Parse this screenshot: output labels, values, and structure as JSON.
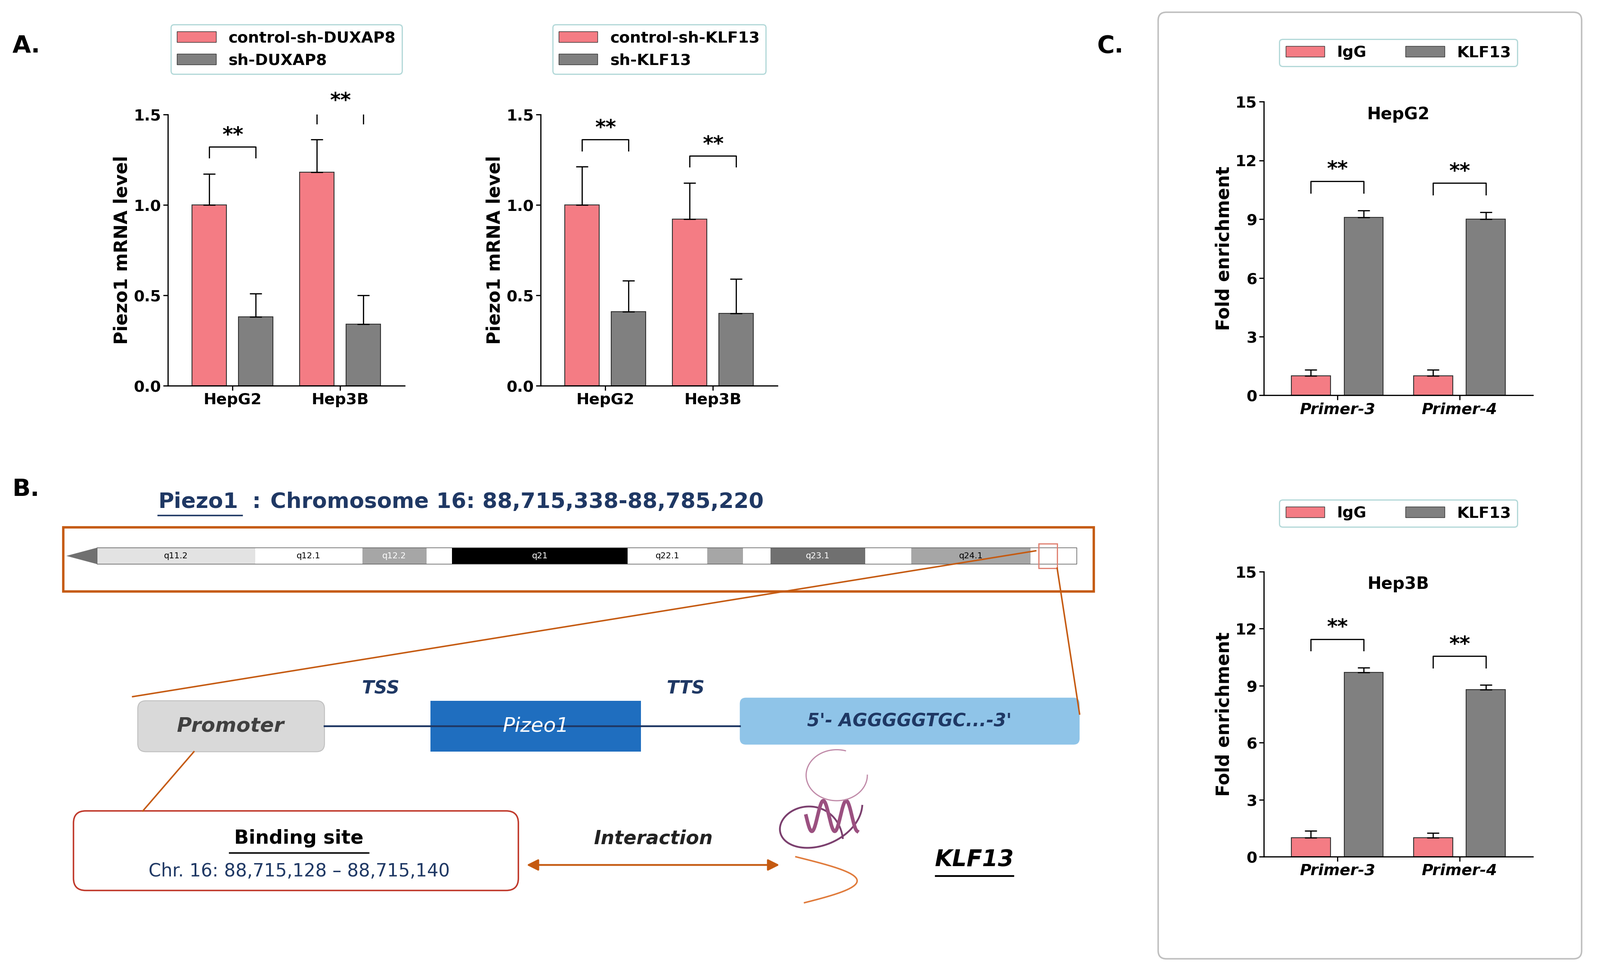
{
  "panel_labels": [
    "A.",
    "B.",
    "C."
  ],
  "chart_data": [
    {
      "type": "bar",
      "ylabel": "Piezo1 mRNA level",
      "categories": [
        "HepG2",
        "Hep3B"
      ],
      "series": [
        {
          "name": "control-sh-DUXAP8",
          "color": "#f47c84",
          "values": [
            1.0,
            1.18
          ],
          "errors": [
            0.17,
            0.18
          ]
        },
        {
          "name": "sh-DUXAP8",
          "color": "#808080",
          "values": [
            0.38,
            0.34
          ],
          "errors": [
            0.13,
            0.16
          ]
        }
      ],
      "ylim": [
        0,
        1.5
      ],
      "yticks": [
        {
          "value": 0,
          "label": "0.0"
        },
        0.5,
        {
          "value": 1,
          "label": "1.0"
        },
        1.5
      ],
      "legend": "upper center",
      "significance": [
        "**",
        "**"
      ]
    },
    {
      "type": "bar",
      "ylabel": "Piezo1 mRNA level",
      "categories": [
        "HepG2",
        "Hep3B"
      ],
      "series": [
        {
          "name": "control-sh-KLF13",
          "color": "#f47c84",
          "values": [
            1.0,
            0.92
          ],
          "errors": [
            0.21,
            0.2
          ]
        },
        {
          "name": "sh-KLF13",
          "color": "#808080",
          "values": [
            0.41,
            0.4
          ],
          "errors": [
            0.17,
            0.19
          ]
        }
      ],
      "ylim": [
        0,
        1.5
      ],
      "yticks": [
        {
          "value": 0,
          "label": "0.0"
        },
        0.5,
        {
          "value": 1,
          "label": "1.0"
        },
        1.5
      ],
      "legend": "upper center",
      "significance": [
        "**",
        "**"
      ]
    },
    {
      "type": "bar",
      "title": "HepG2",
      "ylabel": "Fold enrichment",
      "categories": [
        "Primer-3",
        "Primer-4"
      ],
      "series": [
        {
          "name": "IgG",
          "color": "#f47c84",
          "values": [
            1.0,
            1.0
          ],
          "errors": [
            0.3,
            0.3
          ]
        },
        {
          "name": "KLF13",
          "color": "#808080",
          "values": [
            9.1,
            9.0
          ],
          "errors": [
            0.35,
            0.35
          ]
        }
      ],
      "ylim": [
        0,
        15
      ],
      "yticks": [
        0,
        3,
        6,
        9,
        12,
        15
      ],
      "legend": "upper center",
      "significance": [
        "**",
        "**"
      ]
    },
    {
      "type": "bar",
      "title": "Hep3B",
      "ylabel": "Fold enrichment",
      "categories": [
        "Primer-3",
        "Primer-4"
      ],
      "series": [
        {
          "name": "IgG",
          "color": "#f47c84",
          "values": [
            1.0,
            1.0
          ],
          "errors": [
            0.35,
            0.25
          ]
        },
        {
          "name": "KLF13",
          "color": "#808080",
          "values": [
            9.7,
            8.8
          ],
          "errors": [
            0.25,
            0.25
          ]
        }
      ],
      "ylim": [
        0,
        15
      ],
      "yticks": [
        0,
        3,
        6,
        9,
        12,
        15
      ],
      "legend": "upper center",
      "significance": [
        "**",
        "**"
      ]
    }
  ],
  "diagram": {
    "gene": "Piezo1",
    "separator": ":",
    "location": "Chromosome 16: 88,715,338-88,785,220",
    "bands": [
      "q11.2",
      "q12.1",
      "q12.2",
      "q21",
      "q22.1",
      "q23.1",
      "q24.1"
    ],
    "promoter": "Promoter",
    "tss": "TSS",
    "gene_box": "Pizeo1",
    "tts": "TTS",
    "sequence": "5'- AGGGGGTGC...-3'",
    "binding_site": {
      "title": "Binding site",
      "location": "Chr. 16: 88,715,128 – 88,715,140"
    },
    "interaction": "Interaction",
    "protein": "KLF13"
  }
}
